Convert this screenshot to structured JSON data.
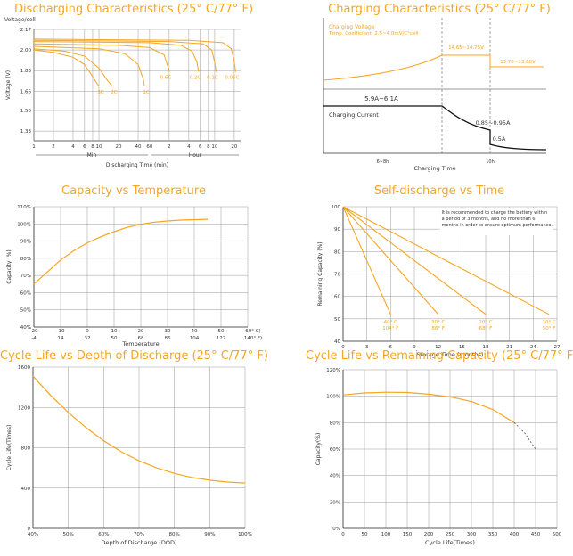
{
  "theme": {
    "accent": "#f5a623",
    "grid": "#999999",
    "axis": "#333333"
  },
  "chart_data": [
    {
      "id": "discharge",
      "type": "line",
      "title": "Discharging Characteristics (25° C/77° F)",
      "ylabel": "Voltage (V)",
      "ytitle": "Voltage/cell",
      "xlabel": "Discharging Time (min)",
      "y_ticks": [
        "2.17",
        "2.00",
        "1.83",
        "1.66",
        "1.50",
        "1.33"
      ],
      "x_ticks": [
        "1",
        "2",
        "4",
        "6",
        "8",
        "10",
        "20",
        "40",
        "60",
        "2",
        "4",
        "6",
        "8",
        "10",
        "20"
      ],
      "unit_min": "Min",
      "unit_hour": "Hour",
      "series": [
        {
          "name": "3C",
          "label": "3C",
          "points": [
            [
              1,
              2.0
            ],
            [
              2,
              1.98
            ],
            [
              4,
              1.94
            ],
            [
              6,
              1.88
            ],
            [
              8,
              1.78
            ],
            [
              10,
              1.7
            ]
          ]
        },
        {
          "name": "2C",
          "label": "2C",
          "points": [
            [
              1,
              2.01
            ],
            [
              3,
              1.99
            ],
            [
              6,
              1.95
            ],
            [
              10,
              1.85
            ],
            [
              13,
              1.76
            ],
            [
              16,
              1.7
            ]
          ]
        },
        {
          "name": "1C",
          "label": "1C",
          "points": [
            [
              1,
              2.03
            ],
            [
              10,
              2.01
            ],
            [
              25,
              1.97
            ],
            [
              40,
              1.88
            ],
            [
              48,
              1.76
            ],
            [
              50,
              1.7
            ]
          ]
        },
        {
          "name": "0.6C",
          "label": "0.6C",
          "points": [
            [
              1,
              2.05
            ],
            [
              20,
              2.04
            ],
            [
              60,
              2.02
            ],
            [
              100,
              1.96
            ],
            [
              115,
              1.86
            ],
            [
              120,
              1.82
            ]
          ]
        },
        {
          "name": "0.2C",
          "label": "0.2C",
          "points": [
            [
              1,
              2.07
            ],
            [
              60,
              2.06
            ],
            [
              180,
              2.04
            ],
            [
              270,
              1.99
            ],
            [
              320,
              1.9
            ],
            [
              340,
              1.82
            ]
          ]
        },
        {
          "name": "0.1C",
          "label": "0.1C",
          "points": [
            [
              1,
              2.08
            ],
            [
              120,
              2.07
            ],
            [
              400,
              2.05
            ],
            [
              540,
              2.0
            ],
            [
              600,
              1.9
            ],
            [
              630,
              1.82
            ]
          ]
        },
        {
          "name": "0.05C",
          "label": "0.05C",
          "points": [
            [
              1,
              2.09
            ],
            [
              240,
              2.08
            ],
            [
              800,
              2.06
            ],
            [
              1080,
              2.01
            ],
            [
              1200,
              1.9
            ],
            [
              1260,
              1.82
            ]
          ]
        }
      ]
    },
    {
      "id": "charging",
      "type": "line",
      "title": "Charging Characteristics (25° C/77° F)",
      "xlabel": "Charging Time",
      "legend_line1": "Charging Voltage",
      "legend_line2": "Temp. Coefficient: 2.5~4.0mV/C°cell",
      "v1_label": "14.65~14.75V",
      "v2_label": "13.70~13.80V",
      "current_label": "Charging Current",
      "c1_label": "5.9A~6.1A",
      "c2_label": "0.85~0.95A",
      "c3_label": "0.5A",
      "t1_label": "6~8h",
      "t2_label": "10h"
    },
    {
      "id": "capacity_temp",
      "type": "line",
      "title": "Capacity vs Temperature",
      "ylabel": "Capacity (%)",
      "xlabel": "Temperature",
      "y_ticks": [
        "110%",
        "100%",
        "90%",
        "80%",
        "70%",
        "60%",
        "50%",
        "40%"
      ],
      "x_ticks_c": [
        "-20",
        "-10",
        "0",
        "10",
        "20",
        "30",
        "40",
        "50",
        "60° C)"
      ],
      "x_ticks_f": [
        "-4",
        "14",
        "32",
        "50",
        "68",
        "86",
        "104",
        "122",
        "140° F)"
      ],
      "ylim": [
        40,
        110
      ],
      "xlim": [
        -20,
        60
      ],
      "points": [
        [
          -20,
          65
        ],
        [
          -15,
          72
        ],
        [
          -10,
          79
        ],
        [
          -5,
          84.5
        ],
        [
          0,
          89
        ],
        [
          5,
          92.5
        ],
        [
          10,
          95.5
        ],
        [
          15,
          98
        ],
        [
          20,
          99.8
        ],
        [
          25,
          101
        ],
        [
          30,
          101.7
        ],
        [
          35,
          102.2
        ],
        [
          40,
          102.5
        ],
        [
          45,
          102.7
        ]
      ]
    },
    {
      "id": "self_discharge",
      "type": "line",
      "title": "Self-discharge vs Time",
      "ylabel": "Remaining Capacity (%)",
      "xlabel": "Storage Time (months)",
      "note": "It is recommended to charge the battery within a period of 3 months, and no more than 6 months in order to ensure optimum performance.",
      "y_ticks": [
        "100",
        "90",
        "80",
        "70",
        "60",
        "50",
        "40"
      ],
      "x_ticks": [
        "0",
        "3",
        "6",
        "9",
        "12",
        "15",
        "18",
        "21",
        "24",
        "27"
      ],
      "ylim": [
        40,
        100
      ],
      "xlim": [
        0,
        27
      ],
      "series": [
        {
          "name": "40° C / 104° F",
          "c": "40° C",
          "f": "104° F",
          "points": [
            [
              0,
              100
            ],
            [
              6,
              52
            ]
          ]
        },
        {
          "name": "30° C / 86° F",
          "c": "30° C",
          "f": "86° F",
          "points": [
            [
              0,
              100
            ],
            [
              12,
              52
            ]
          ]
        },
        {
          "name": "20° C / 68° F",
          "c": "20° C",
          "f": "68° F",
          "points": [
            [
              0,
              100
            ],
            [
              18,
              52
            ]
          ]
        },
        {
          "name": "10° C / 50° F",
          "c": "10° C",
          "f": "50° F",
          "points": [
            [
              0,
              100
            ],
            [
              26,
              52
            ]
          ]
        }
      ]
    },
    {
      "id": "cycle_dod",
      "type": "line",
      "title": "Cycle Life vs Depth of Discharge (25° C/77° F)",
      "ylabel": "Cycle Life(Times)",
      "xlabel": "Depth of Discharge (DOD)",
      "y_ticks": [
        "1600",
        "1200",
        "800",
        "400",
        "0"
      ],
      "x_ticks": [
        "40%",
        "50%",
        "60%",
        "70%",
        "80%",
        "90%",
        "100%"
      ],
      "ylim": [
        0,
        1600
      ],
      "xlim": [
        40,
        100
      ],
      "points": [
        [
          40,
          1510
        ],
        [
          45,
          1320
        ],
        [
          50,
          1150
        ],
        [
          55,
          1000
        ],
        [
          60,
          870
        ],
        [
          65,
          760
        ],
        [
          70,
          670
        ],
        [
          75,
          600
        ],
        [
          80,
          545
        ],
        [
          85,
          505
        ],
        [
          90,
          478
        ],
        [
          95,
          460
        ],
        [
          100,
          450
        ]
      ]
    },
    {
      "id": "cycle_capacity",
      "type": "line",
      "title": "Cycle Life vs Remaining Capacity (25° C/77° F)",
      "ylabel": "Capacity(%)",
      "xlabel": "Cycle Life(Times)",
      "y_ticks": [
        "120%",
        "100%",
        "80%",
        "60%",
        "40%",
        "20%",
        "0%"
      ],
      "x_ticks": [
        "0",
        "50",
        "100",
        "150",
        "200",
        "250",
        "300",
        "350",
        "400",
        "450",
        "500"
      ],
      "ylim": [
        0,
        120
      ],
      "xlim": [
        0,
        500
      ],
      "points": [
        [
          0,
          101
        ],
        [
          50,
          102.5
        ],
        [
          100,
          103
        ],
        [
          150,
          102.8
        ],
        [
          200,
          101.5
        ],
        [
          250,
          99.5
        ],
        [
          300,
          96
        ],
        [
          350,
          90
        ],
        [
          400,
          80
        ]
      ],
      "dashed_points": [
        [
          400,
          80
        ],
        [
          425,
          72
        ],
        [
          450,
          60
        ]
      ]
    }
  ]
}
